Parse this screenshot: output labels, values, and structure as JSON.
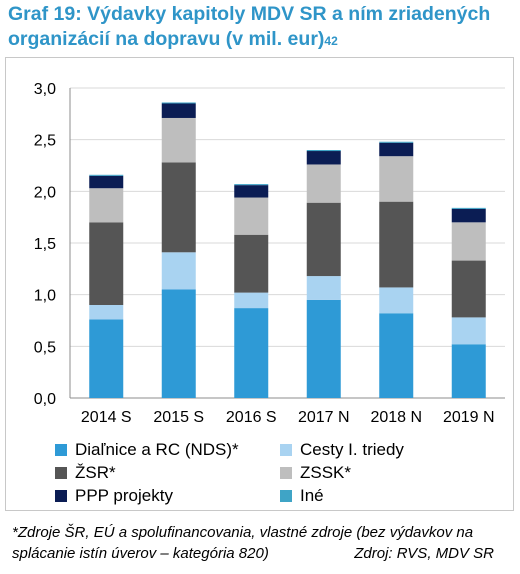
{
  "title": {
    "line1": "Graf 19: Výdavky kapitoly MDV SR a ním zriadených",
    "line2": "organizácií na dopravu (v mil. eur)",
    "footnote_ref": "42"
  },
  "chart_data": {
    "type": "bar",
    "stacked": true,
    "categories": [
      "2014 S",
      "2015 S",
      "2016 S",
      "2017 N",
      "2018 N",
      "2019 N"
    ],
    "ylim": [
      0,
      3.0
    ],
    "yticks": [
      "0,0",
      "0,5",
      "1,0",
      "1,5",
      "2,0",
      "2,5",
      "3,0"
    ],
    "grid": true,
    "legend_position": "bottom",
    "series": [
      {
        "name": "Diaľnice a RC (NDS)*",
        "color": "#2e9ad6",
        "values": [
          0.76,
          1.05,
          0.87,
          0.95,
          0.82,
          0.52
        ]
      },
      {
        "name": "Cesty I. triedy",
        "color": "#a9d3f1",
        "values": [
          0.14,
          0.36,
          0.15,
          0.23,
          0.25,
          0.26
        ]
      },
      {
        "name": "ŽSR*",
        "color": "#555555",
        "values": [
          0.8,
          0.87,
          0.56,
          0.71,
          0.83,
          0.55
        ]
      },
      {
        "name": "ZSSK*",
        "color": "#bebebe",
        "values": [
          0.33,
          0.43,
          0.36,
          0.37,
          0.44,
          0.37
        ]
      },
      {
        "name": "PPP projekty",
        "color": "#0b1d54",
        "values": [
          0.12,
          0.14,
          0.12,
          0.13,
          0.13,
          0.13
        ]
      },
      {
        "name": "Iné",
        "color": "#3fa4c6",
        "values": [
          0.01,
          0.01,
          0.01,
          0.01,
          0.01,
          0.01
        ]
      }
    ]
  },
  "footer": {
    "note_line1": "*Zdroje ŠR, EÚ a spolufinancovania, vlastné zdroje (bez výdavkov na",
    "note_line2": "splácanie istín úverov – kategória 820)",
    "source": "Zdroj: RVS, MDV SR"
  }
}
